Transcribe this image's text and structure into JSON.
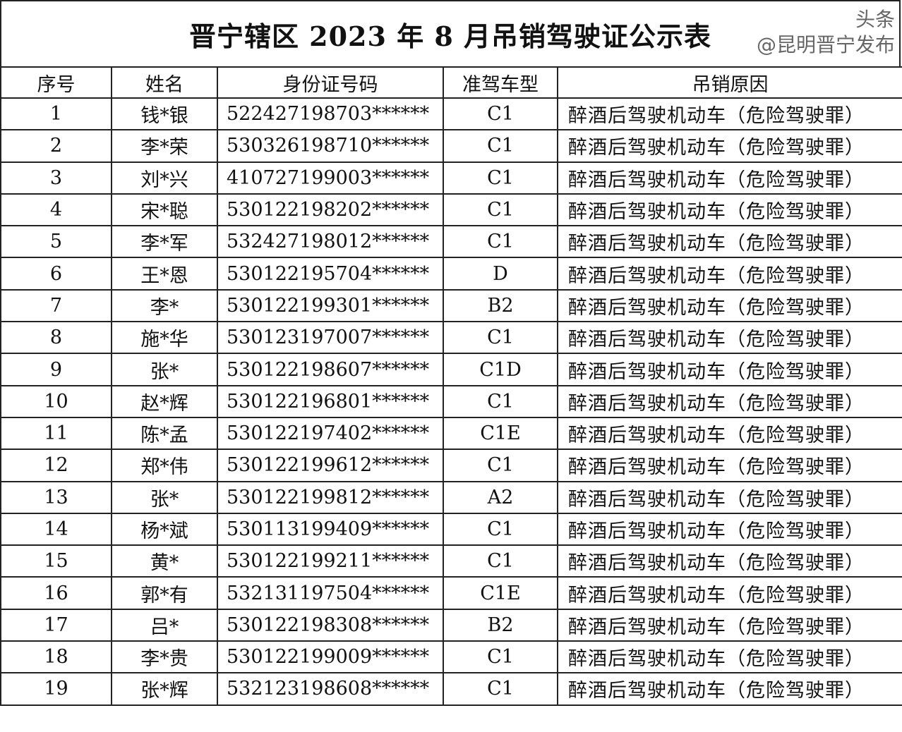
{
  "title": "晋宁辖区 2023 年 8 月吊销驾驶证公示表",
  "columns": [
    "序号",
    "姓名",
    "身份证号码",
    "准驾车型",
    "吊销原因"
  ],
  "rows": [
    [
      "1",
      "钱*银",
      "522427198703******",
      "C1",
      "醉酒后驾驶机动车（危险驾驶罪）"
    ],
    [
      "2",
      "李*荣",
      "530326198710******",
      "C1",
      "醉酒后驾驶机动车（危险驾驶罪）"
    ],
    [
      "3",
      "刘*兴",
      "410727199003******",
      "C1",
      "醉酒后驾驶机动车（危险驾驶罪）"
    ],
    [
      "4",
      "宋*聪",
      "530122198202******",
      "C1",
      "醉酒后驾驶机动车（危险驾驶罪）"
    ],
    [
      "5",
      "李*军",
      "532427198012******",
      "C1",
      "醉酒后驾驶机动车（危险驾驶罪）"
    ],
    [
      "6",
      "王*恩",
      "530122195704******",
      "D",
      "醉酒后驾驶机动车（危险驾驶罪）"
    ],
    [
      "7",
      "李*",
      "530122199301******",
      "B2",
      "醉酒后驾驶机动车（危险驾驶罪）"
    ],
    [
      "8",
      "施*华",
      "530123197007******",
      "C1",
      "醉酒后驾驶机动车（危险驾驶罪）"
    ],
    [
      "9",
      "张*",
      "530122198607******",
      "C1D",
      "醉酒后驾驶机动车（危险驾驶罪）"
    ],
    [
      "10",
      "赵*辉",
      "530122196801******",
      "C1",
      "醉酒后驾驶机动车（危险驾驶罪）"
    ],
    [
      "11",
      "陈*孟",
      "530122197402******",
      "C1E",
      "醉酒后驾驶机动车（危险驾驶罪）"
    ],
    [
      "12",
      "郑*伟",
      "530122199612******",
      "C1",
      "醉酒后驾驶机动车（危险驾驶罪）"
    ],
    [
      "13",
      "张*",
      "530122199812******",
      "A2",
      "醉酒后驾驶机动车（危险驾驶罪）"
    ],
    [
      "14",
      "杨*斌",
      "530113199409******",
      "C1",
      "醉酒后驾驶机动车（危险驾驶罪）"
    ],
    [
      "15",
      "黄*",
      "530122199211******",
      "C1",
      "醉酒后驾驶机动车（危险驾驶罪）"
    ],
    [
      "16",
      "郭*有",
      "532131197504******",
      "C1E",
      "醉酒后驾驶机动车（危险驾驶罪）"
    ],
    [
      "17",
      "吕*",
      "530122198308******",
      "B2",
      "醉酒后驾驶机动车（危险驾驶罪）"
    ],
    [
      "18",
      "李*贵",
      "530122199009******",
      "C1",
      "醉酒后驾驶机动车（危险驾驶罪）"
    ],
    [
      "19",
      "张*辉",
      "532123198608******",
      "C1",
      "醉酒后驾驶机动车（危险驾驶罪）"
    ]
  ],
  "watermark": "头条 @昆明晋宁发布"
}
